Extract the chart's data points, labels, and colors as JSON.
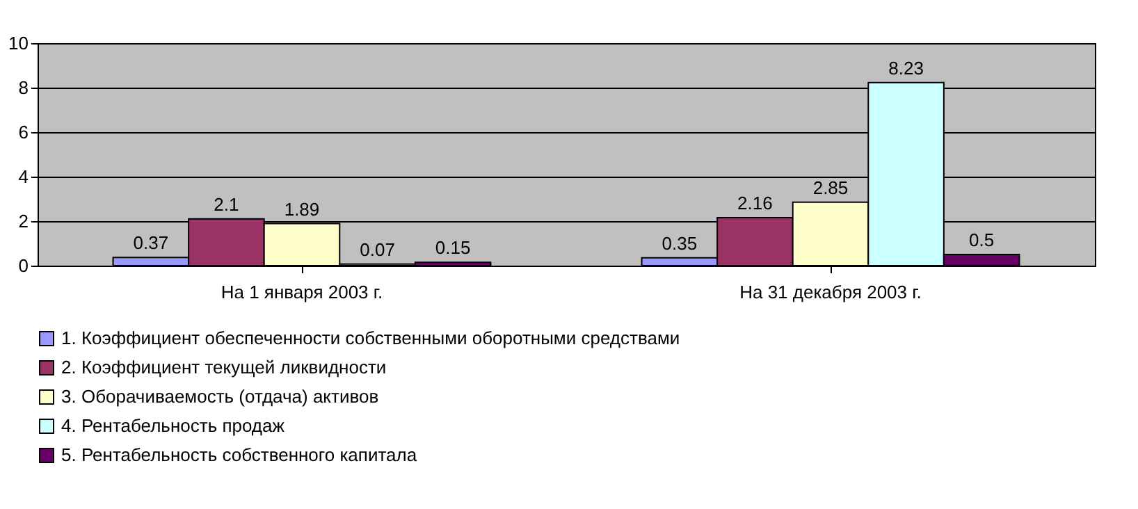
{
  "chart_data": {
    "type": "bar",
    "categories": [
      "На 1 января 2003 г.",
      "На 31 декабря 2003 г."
    ],
    "series": [
      {
        "name": "1. Коэффициент обеспеченности собственными оборотными средствами",
        "color": "#9999ff",
        "values": [
          0.37,
          0.35
        ]
      },
      {
        "name": "2. Коэффициент текущей ликвидности",
        "color": "#993366",
        "values": [
          2.1,
          2.16
        ]
      },
      {
        "name": "3. Оборачиваемость (отдача) активов",
        "color": "#ffffcc",
        "values": [
          1.89,
          2.85
        ]
      },
      {
        "name": "4. Рентабельность продаж",
        "color": "#ccffff",
        "values": [
          0.07,
          8.23
        ]
      },
      {
        "name": "5. Рентабельность собственного капитала",
        "color": "#660066",
        "values": [
          0.15,
          0.5
        ]
      }
    ],
    "ylim": [
      0,
      10
    ],
    "yticks": [
      0,
      2,
      4,
      6,
      8,
      10
    ],
    "grid": "y",
    "legend": "bottom",
    "data_labels": true
  }
}
